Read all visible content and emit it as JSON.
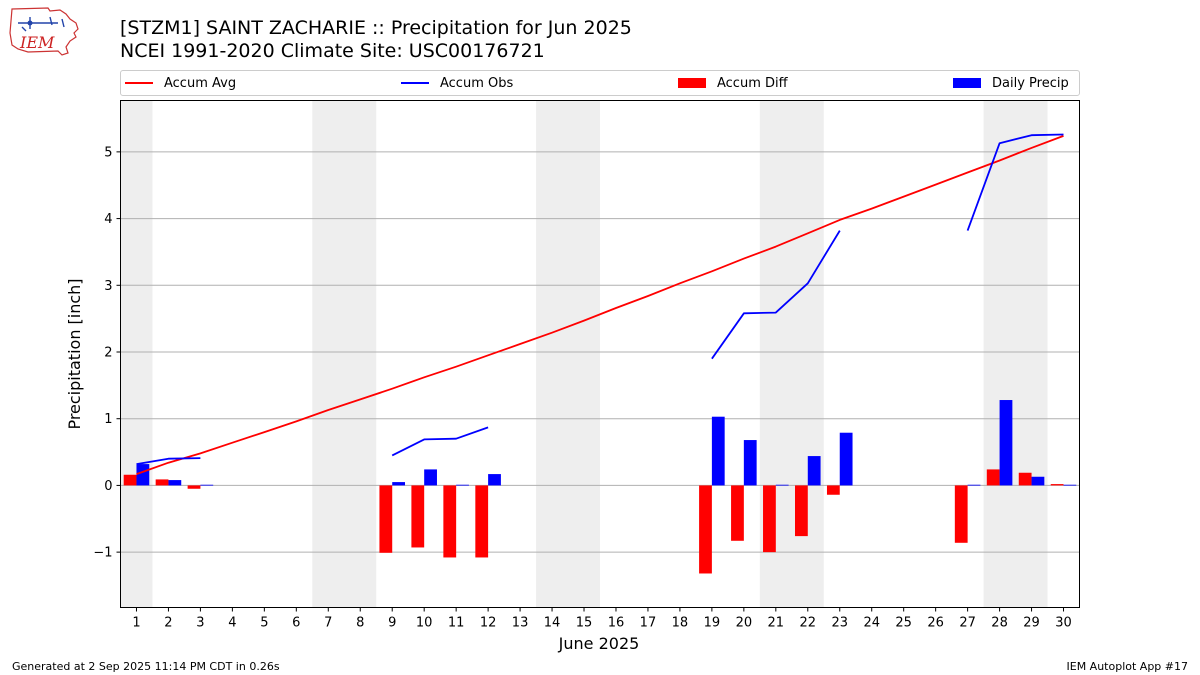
{
  "logo": {
    "text": "IEM",
    "name": "iem-logo-icon"
  },
  "header": {
    "title_line1": "[STZM1] SAINT ZACHARIE :: Precipitation for Jun 2025",
    "title_line2": "NCEI 1991-2020 Climate Site: USC00176721"
  },
  "legend": [
    {
      "label": "Accum Avg",
      "kind": "line",
      "color": "#ff0000"
    },
    {
      "label": "Accum Obs",
      "kind": "line",
      "color": "#0000ff"
    },
    {
      "label": "Accum Diff",
      "kind": "bar",
      "color": "#ff0000"
    },
    {
      "label": "Daily Precip",
      "kind": "bar",
      "color": "#0000ff"
    }
  ],
  "chart_data": {
    "type": "bar",
    "xlabel": "June 2025",
    "ylabel": "Precipitation [inch]",
    "x": [
      1,
      2,
      3,
      4,
      5,
      6,
      7,
      8,
      9,
      10,
      11,
      12,
      13,
      14,
      15,
      16,
      17,
      18,
      19,
      20,
      21,
      22,
      23,
      24,
      25,
      26,
      27,
      28,
      29,
      30
    ],
    "xlim": [
      0.5,
      30.5
    ],
    "ylim": [
      -1.83,
      5.77
    ],
    "yticks": [
      -1,
      0,
      1,
      2,
      3,
      4,
      5
    ],
    "ytick_labels": [
      "−1",
      "0",
      "1",
      "2",
      "3",
      "4",
      "5"
    ],
    "grid": "y",
    "weekend_shading": [
      [
        0.5,
        1.5
      ],
      [
        6.5,
        8.5
      ],
      [
        13.5,
        15.5
      ],
      [
        20.5,
        22.5
      ],
      [
        27.5,
        29.5
      ]
    ],
    "shade_color": "#eeeeee",
    "series": [
      {
        "name": "Accum Avg",
        "kind": "line",
        "color": "#ff0000",
        "values": [
          0.17,
          0.34,
          0.48,
          0.64,
          0.8,
          0.96,
          1.13,
          1.29,
          1.45,
          1.62,
          1.78,
          1.95,
          2.12,
          2.29,
          2.47,
          2.66,
          2.84,
          3.03,
          3.21,
          3.4,
          3.58,
          3.78,
          3.98,
          4.15,
          4.33,
          4.51,
          4.69,
          4.87,
          5.06,
          5.24
        ]
      },
      {
        "name": "Accum Obs",
        "kind": "line",
        "color": "#0000ff",
        "values": [
          0.32,
          0.4,
          0.41,
          null,
          null,
          null,
          null,
          null,
          0.45,
          0.69,
          0.7,
          0.87,
          null,
          null,
          null,
          null,
          null,
          null,
          1.9,
          2.58,
          2.59,
          3.03,
          3.82,
          null,
          null,
          null,
          3.82,
          5.13,
          5.25,
          5.26
        ]
      },
      {
        "name": "Accum Diff",
        "kind": "bar",
        "color": "#ff0000",
        "values": [
          0.16,
          0.09,
          -0.05,
          null,
          null,
          null,
          null,
          null,
          -1.01,
          -0.93,
          -1.08,
          -1.08,
          null,
          null,
          null,
          null,
          null,
          null,
          -1.32,
          -0.83,
          -1.0,
          -0.76,
          -0.14,
          null,
          null,
          null,
          -0.86,
          0.24,
          0.19,
          0.02
        ]
      },
      {
        "name": "Daily Precip",
        "kind": "bar",
        "color": "#0000ff",
        "values": [
          0.32,
          0.08,
          0.01,
          null,
          null,
          null,
          null,
          null,
          0.05,
          0.24,
          0.01,
          0.17,
          null,
          null,
          null,
          null,
          null,
          null,
          1.03,
          0.68,
          0.01,
          0.44,
          0.79,
          null,
          null,
          null,
          0.01,
          1.28,
          0.13,
          0.01
        ]
      }
    ]
  },
  "footer": {
    "left": "Generated at 2 Sep 2025 11:14 PM CDT in 0.26s",
    "right": "IEM Autoplot App #17"
  }
}
